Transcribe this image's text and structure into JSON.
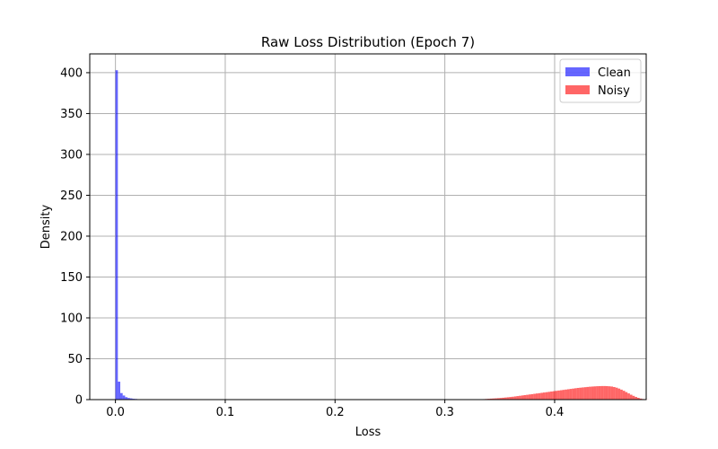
{
  "chart_data": {
    "type": "bar",
    "subtype": "histogram",
    "title": "Raw Loss Distribution (Epoch 7)",
    "xlabel": "Loss",
    "ylabel": "Density",
    "xlim": [
      -0.0234,
      0.4834
    ],
    "ylim": [
      0,
      423
    ],
    "xticks": [
      0.0,
      0.1,
      0.2,
      0.3,
      0.4
    ],
    "xtick_labels": [
      "0.0",
      "0.1",
      "0.2",
      "0.3",
      "0.4"
    ],
    "yticks": [
      0,
      50,
      100,
      150,
      200,
      250,
      300,
      350,
      400
    ],
    "ytick_labels": [
      "0",
      "50",
      "100",
      "150",
      "200",
      "250",
      "300",
      "350",
      "400"
    ],
    "grid": true,
    "legend_position": "top-right",
    "series": [
      {
        "name": "Clean",
        "color": "#0000ff",
        "opacity": 0.6,
        "bin_start": 0.0,
        "bin_width": 0.0022,
        "values": [
          403,
          22,
          8,
          5,
          3,
          2,
          1.5,
          1,
          0.8,
          0.5
        ]
      },
      {
        "name": "Noisy",
        "color": "#ff0000",
        "opacity": 0.6,
        "bin_start": 0.33,
        "bin_width": 0.0022,
        "values": [
          0.4,
          0.5,
          0.6,
          0.8,
          1.0,
          1.2,
          1.4,
          1.6,
          1.8,
          2.0,
          2.3,
          2.6,
          2.9,
          3.2,
          3.5,
          3.9,
          4.3,
          4.7,
          5.1,
          5.5,
          5.9,
          6.3,
          6.7,
          7.1,
          7.5,
          7.9,
          8.3,
          8.7,
          9.1,
          9.5,
          9.9,
          10.3,
          10.7,
          11.1,
          11.5,
          11.9,
          12.3,
          12.7,
          13.1,
          13.5,
          13.9,
          14.3,
          14.6,
          14.9,
          15.2,
          15.5,
          15.8,
          16.0,
          16.2,
          16.4,
          16.5,
          16.6,
          16.6,
          16.5,
          16.3,
          16.0,
          15.4,
          14.6,
          13.5,
          12.2,
          10.8,
          9.2,
          7.6,
          6.0,
          4.6,
          3.3,
          2.2,
          1.3,
          0.7,
          0.3,
          0.1
        ]
      }
    ]
  }
}
